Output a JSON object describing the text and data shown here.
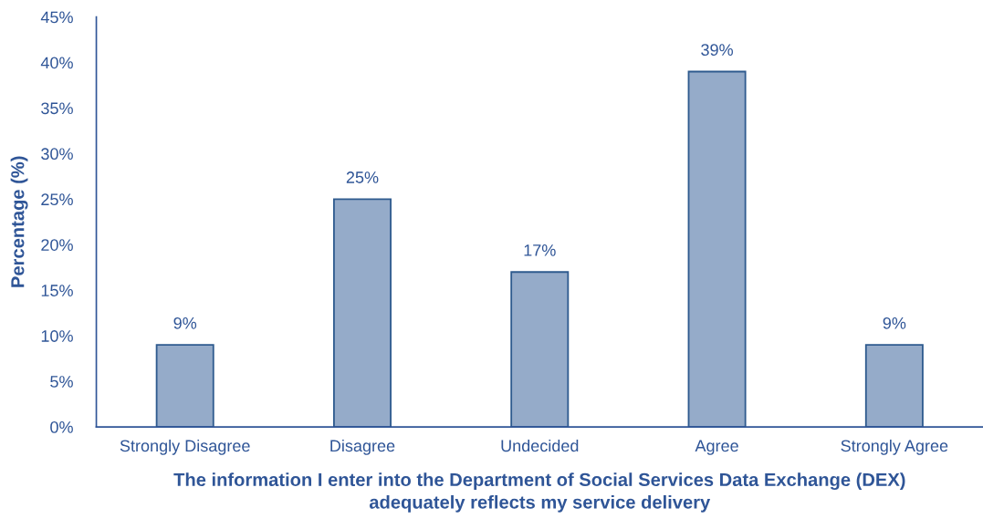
{
  "chart_data": {
    "type": "bar",
    "xlabel": "The information I enter into the Department of Social Services Data Exchange (DEX)\nadequately reflects my service delivery",
    "ylabel": "Percentage (%)",
    "categories": [
      "Strongly Disagree",
      "Disagree",
      "Undecided",
      "Agree",
      "Strongly Agree"
    ],
    "values": [
      9,
      25,
      17,
      39,
      9
    ],
    "value_labels": [
      "9%",
      "25%",
      "17%",
      "39%",
      "9%"
    ],
    "color": "#95abc9",
    "ylim": [
      0,
      45
    ],
    "yticks": [
      {
        "value": 0,
        "label": "0%"
      },
      {
        "value": 5,
        "label": "5%"
      },
      {
        "value": 10,
        "label": "10%"
      },
      {
        "value": 15,
        "label": "15%"
      },
      {
        "value": 20,
        "label": "20%"
      },
      {
        "value": 25,
        "label": "25%"
      },
      {
        "value": 30,
        "label": "30%"
      },
      {
        "value": 35,
        "label": "35%"
      },
      {
        "value": 40,
        "label": "40%"
      },
      {
        "value": 45,
        "label": "45%"
      }
    ],
    "grid": false,
    "legend": false
  }
}
